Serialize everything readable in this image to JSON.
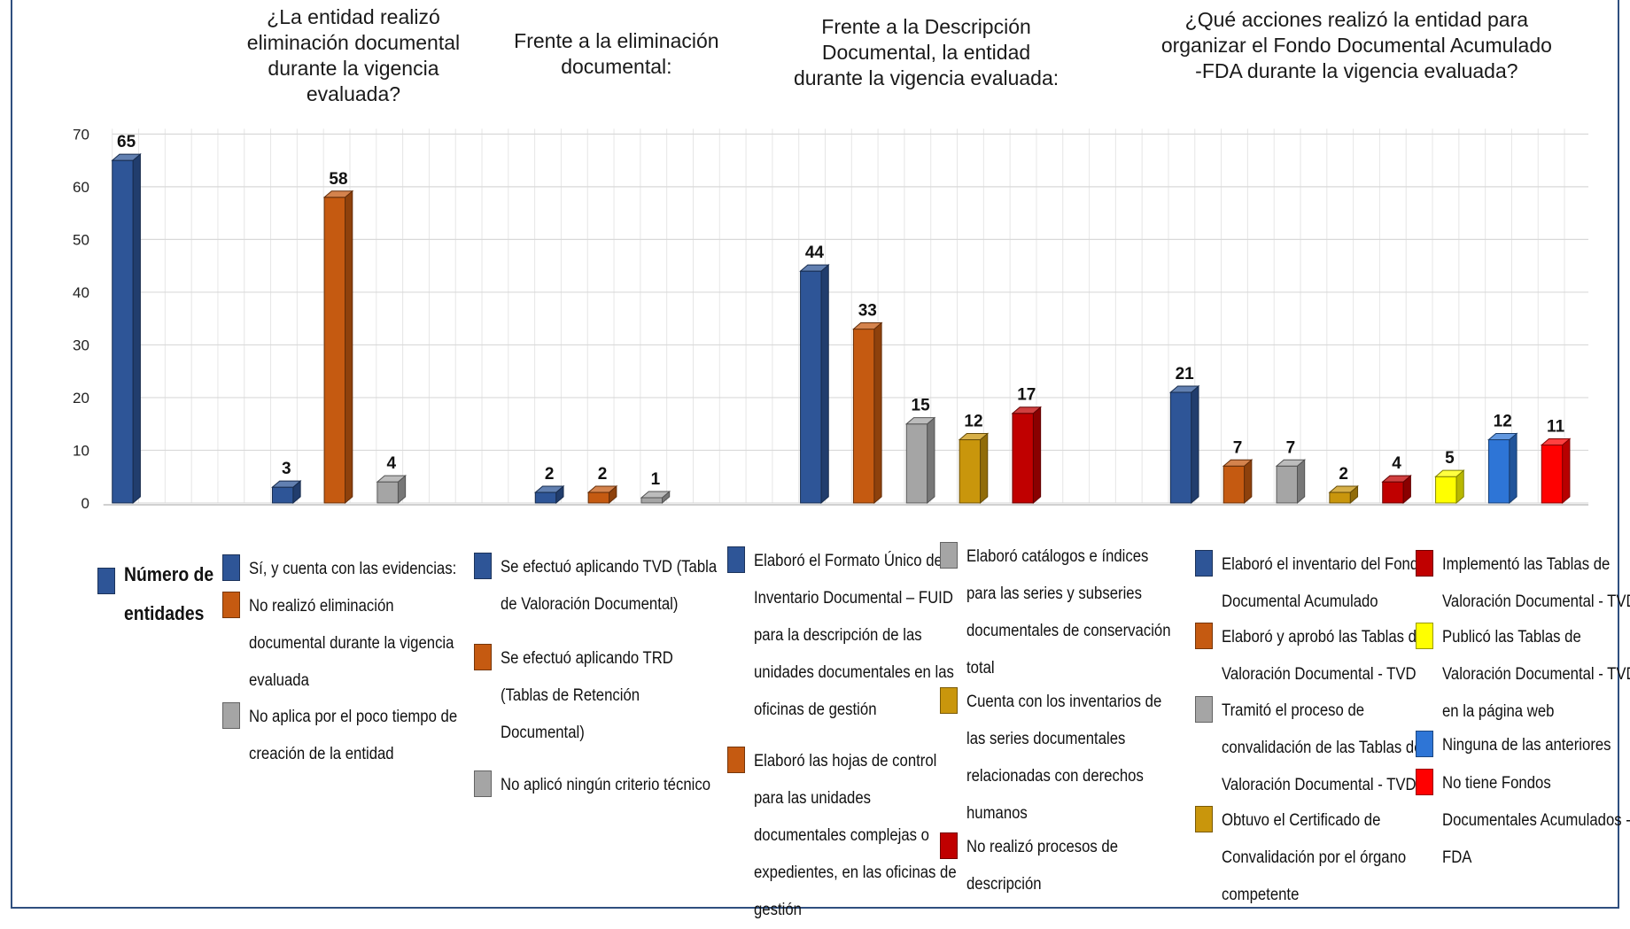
{
  "chart_data": {
    "type": "bar",
    "ylim": [
      0,
      70
    ],
    "yticks": [
      0,
      10,
      20,
      30,
      40,
      50,
      60,
      70
    ],
    "grid": true,
    "groups": [
      {
        "title": "",
        "bars": [
          {
            "label": "Número de entidades",
            "value": 65,
            "color": "#2e5597"
          }
        ]
      },
      {
        "title": "¿La entidad realizó eliminación documental durante la vigencia evaluada?",
        "bars": [
          {
            "label": "Sí, y cuenta con las evidencias:",
            "value": 3,
            "color": "#2e5597"
          },
          {
            "label": "No realizó eliminación documental durante la vigencia evaluada",
            "value": 58,
            "color": "#c55a11"
          },
          {
            "label": "No aplica por el poco tiempo de creación de la entidad",
            "value": 4,
            "color": "#a5a5a5"
          }
        ]
      },
      {
        "title": "Frente a la eliminación documental:",
        "bars": [
          {
            "label": "Se efectuó aplicando TVD (Tabla de Valoración Documental)",
            "value": 2,
            "color": "#2e5597"
          },
          {
            "label": "Se efectuó aplicando TRD (Tablas de Retención Documental)",
            "value": 2,
            "color": "#c55a11"
          },
          {
            "label": "No aplicó ningún criterio técnico",
            "value": 1,
            "color": "#a5a5a5"
          }
        ]
      },
      {
        "title": "Frente a la Descripción Documental, la entidad durante la vigencia evaluada:",
        "bars": [
          {
            "label": "Elaboró el Formato Único de Inventario Documental – FUID para la descripción de las unidades documentales en las oficinas de gestión",
            "value": 44,
            "color": "#2e5597"
          },
          {
            "label": "Elaboró las hojas de control para las unidades documentales complejas o expedientes, en las oficinas de gestión",
            "value": 33,
            "color": "#c55a11"
          },
          {
            "label": "Elaboró catálogos e índices para las series y subseries documentales de conservación total",
            "value": 15,
            "color": "#a5a5a5"
          },
          {
            "label": "Cuenta con los inventarios de las series documentales relacionadas con derechos humanos",
            "value": 12,
            "color": "#c9960c"
          },
          {
            "label": "No realizó procesos de descripción",
            "value": 17,
            "color": "#c00000"
          }
        ]
      },
      {
        "title": "¿Qué acciones realizó la entidad para organizar el Fondo Documental Acumulado -FDA durante la vigencia evaluada?",
        "bars": [
          {
            "label": "Elaboró el inventario del Fondo Documental Acumulado",
            "value": 21,
            "color": "#2e5597"
          },
          {
            "label": "Elaboró y aprobó las Tablas de Valoración Documental - TVD",
            "value": 7,
            "color": "#c55a11"
          },
          {
            "label": "Tramitó el proceso de convalidación de las Tablas de Valoración Documental - TVD",
            "value": 7,
            "color": "#a5a5a5"
          },
          {
            "label": "Obtuvo el Certificado de Convalidación por el órgano competente",
            "value": 2,
            "color": "#c9960c"
          },
          {
            "label": "Implementó las Tablas de Valoración Documental - TVD",
            "value": 4,
            "color": "#c00000"
          },
          {
            "label": "Publicó las Tablas de Valoración Documental - TVD en la página web",
            "value": 5,
            "color": "#ffff00"
          },
          {
            "label": "Ninguna de las anteriores",
            "value": 12,
            "color": "#2e75d6"
          },
          {
            "label": "No tiene Fondos Documentales Acumulados -FDA",
            "value": 11,
            "color": "#ff0000"
          }
        ]
      }
    ]
  }
}
